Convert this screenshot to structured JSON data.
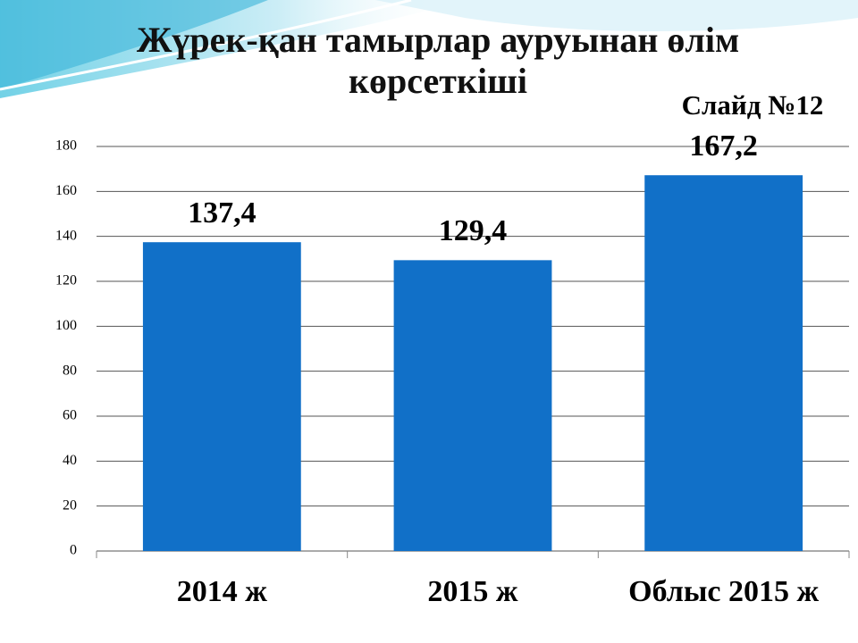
{
  "chart_data": {
    "type": "bar",
    "title": "Жүрек-қан тамырлар ауруынан өлім көрсеткіші",
    "annotation": "Слайд №12",
    "categories": [
      "2014 ж",
      "2015 ж",
      "Облыс 2015 ж"
    ],
    "values": [
      137.4,
      129.4,
      167.2
    ],
    "value_labels": [
      "137,4",
      "129,4",
      "167,2"
    ],
    "color": "#1170c8",
    "ylim": [
      0,
      180
    ],
    "yticks": [
      0,
      20,
      40,
      60,
      80,
      100,
      120,
      140,
      160,
      180
    ],
    "grid": true
  }
}
